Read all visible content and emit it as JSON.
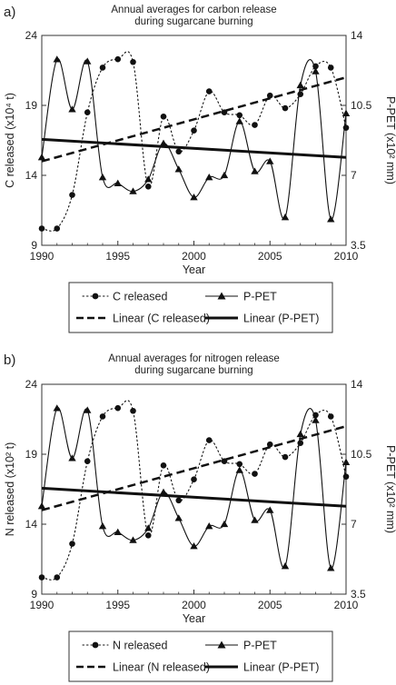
{
  "chart_data": [
    {
      "type": "line",
      "panel_label": "a)",
      "title_lines": [
        "Annual averages for carbon release",
        "during sugarcane burning"
      ],
      "xlabel": "Year",
      "ylabel_left": "C released (x10⁴ t)",
      "ylabel_right": "P-PET (x10² mm)",
      "xlim": [
        1990,
        2010
      ],
      "ylim_left": [
        9,
        24
      ],
      "ylim_right": [
        3.5,
        14
      ],
      "xticks": [
        1990,
        1995,
        2000,
        2005,
        2010
      ],
      "yticks_left": [
        9,
        14,
        19,
        24
      ],
      "yticks_right": [
        3.5,
        7,
        10.5,
        14
      ],
      "x": [
        1990,
        1991,
        1992,
        1993,
        1994,
        1995,
        1996,
        1997,
        1998,
        1999,
        2000,
        2001,
        2002,
        2003,
        2004,
        2005,
        2006,
        2007,
        2008,
        2009,
        2010
      ],
      "series": [
        {
          "name": "C released",
          "axis": "left",
          "style": "dotted-circle",
          "values": [
            10.2,
            10.2,
            12.6,
            18.5,
            21.7,
            22.3,
            22.1,
            13.2,
            18.2,
            15.7,
            17.2,
            20.0,
            18.5,
            18.3,
            17.6,
            19.7,
            18.8,
            19.8,
            21.8,
            21.7,
            17.4
          ]
        },
        {
          "name": "P-PET",
          "axis": "right",
          "style": "solid-triangle",
          "values": [
            7.9,
            12.8,
            10.3,
            12.7,
            6.9,
            6.6,
            6.2,
            6.8,
            8.6,
            7.3,
            5.9,
            6.9,
            7.0,
            9.7,
            7.2,
            7.7,
            4.9,
            11.5,
            12.2,
            4.8,
            10.1
          ]
        },
        {
          "name": "Linear (C released)",
          "axis": "left",
          "style": "dashed",
          "endpoints": [
            15.0,
            21.0
          ]
        },
        {
          "name": "Linear (P-PET)",
          "axis": "right",
          "style": "solid-thick",
          "endpoints": [
            8.8,
            7.9
          ]
        }
      ],
      "legend": [
        "C released",
        "P-PET",
        "Linear (C released)",
        "Linear (P-PET)"
      ],
      "legend_placement": "below"
    },
    {
      "type": "line",
      "panel_label": "b)",
      "title_lines": [
        "Annual averages for nitrogen release",
        "during sugarcane burning"
      ],
      "xlabel": "Year",
      "ylabel_left": "N released (x10² t)",
      "ylabel_right": "P-PET (x10² mm)",
      "xlim": [
        1990,
        2010
      ],
      "ylim_left": [
        9,
        24
      ],
      "ylim_right": [
        3.5,
        14
      ],
      "xticks": [
        1990,
        1995,
        2000,
        2005,
        2010
      ],
      "yticks_left": [
        9,
        14,
        19,
        24
      ],
      "yticks_right": [
        3.5,
        7,
        10.5,
        14
      ],
      "x": [
        1990,
        1991,
        1992,
        1993,
        1994,
        1995,
        1996,
        1997,
        1998,
        1999,
        2000,
        2001,
        2002,
        2003,
        2004,
        2005,
        2006,
        2007,
        2008,
        2009,
        2010
      ],
      "series": [
        {
          "name": "N released",
          "axis": "left",
          "style": "dotted-circle",
          "values": [
            10.2,
            10.2,
            12.6,
            18.5,
            21.7,
            22.3,
            22.1,
            13.2,
            18.2,
            15.7,
            17.2,
            20.0,
            18.5,
            18.3,
            17.6,
            19.7,
            18.8,
            19.8,
            21.8,
            21.7,
            17.4
          ]
        },
        {
          "name": "P-PET",
          "axis": "right",
          "style": "solid-triangle",
          "values": [
            7.9,
            12.8,
            10.3,
            12.7,
            6.9,
            6.6,
            6.2,
            6.8,
            8.6,
            7.3,
            5.9,
            6.9,
            7.0,
            9.7,
            7.2,
            7.7,
            4.9,
            11.5,
            12.2,
            4.8,
            10.1
          ]
        },
        {
          "name": "Linear (N released)",
          "axis": "left",
          "style": "dashed",
          "endpoints": [
            15.0,
            21.0
          ]
        },
        {
          "name": "Linear (P-PET)",
          "axis": "right",
          "style": "solid-thick",
          "endpoints": [
            8.8,
            7.9
          ]
        }
      ],
      "legend": [
        "N released",
        "P-PET",
        "Linear (N released)",
        "Linear (P-PET)"
      ],
      "legend_placement": "below"
    }
  ]
}
